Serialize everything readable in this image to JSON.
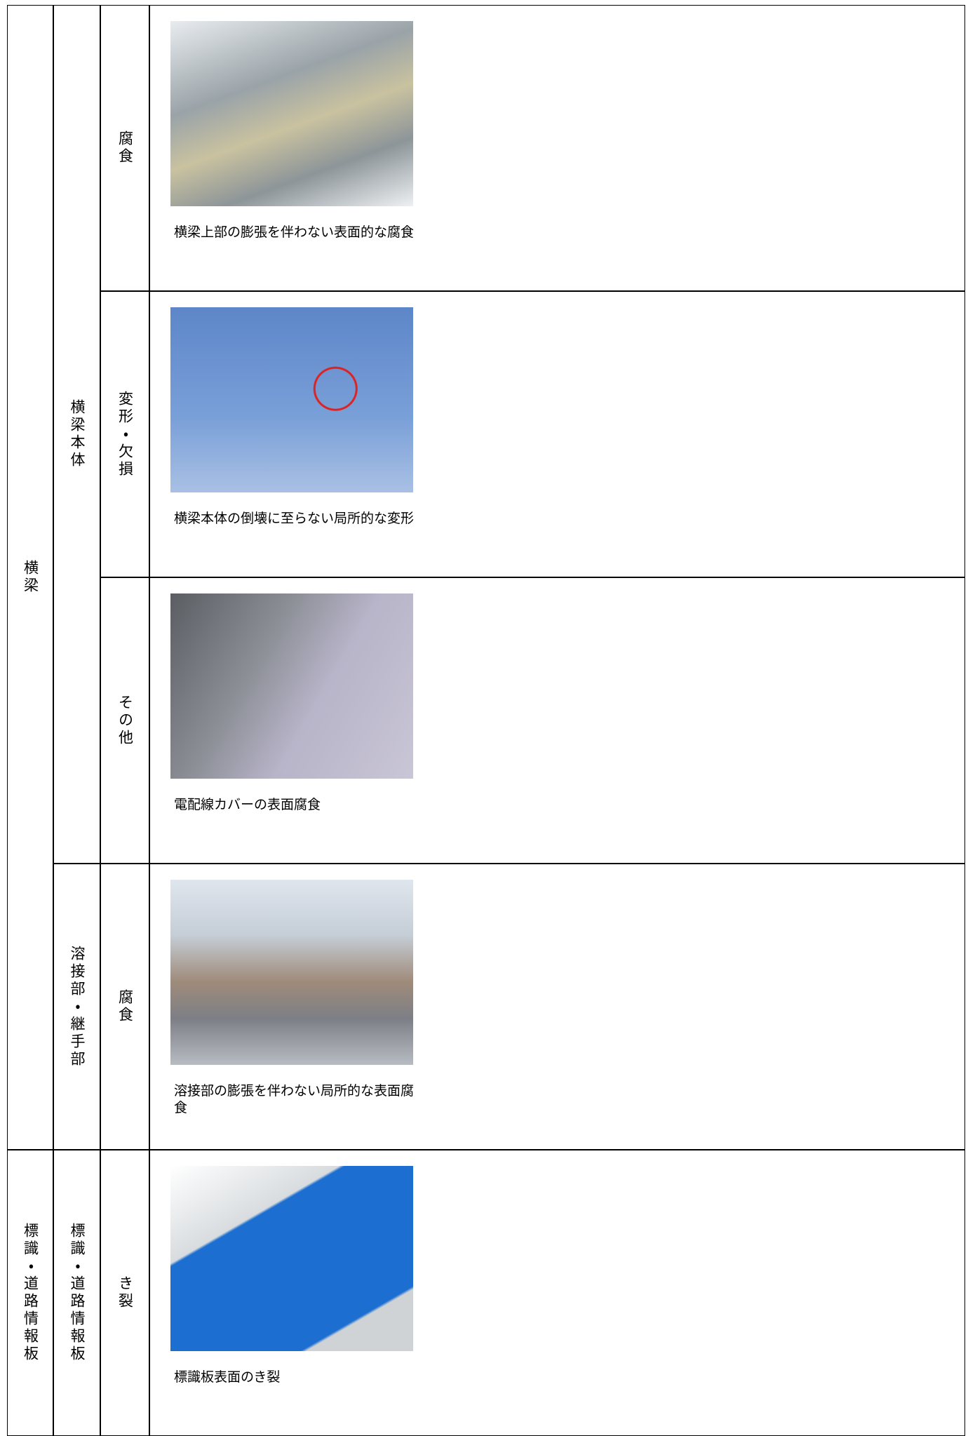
{
  "table": {
    "groups": [
      {
        "label": "横梁",
        "parts": [
          {
            "label": "横梁本体",
            "items": [
              {
                "damage": "腐食",
                "caption": "横梁上部の膨張を伴わない表面的な腐食"
              },
              {
                "damage": "変形・欠損",
                "caption": "横梁本体の倒壊に至らない局所的な変形"
              },
              {
                "damage": "その他",
                "caption": "電配線カバーの表面腐食"
              }
            ]
          },
          {
            "label": "溶接部・継手部",
            "items": [
              {
                "damage": "腐食",
                "caption": "溶接部の膨張を伴わない局所的な表面腐食"
              }
            ]
          }
        ]
      },
      {
        "label": "標識・道路情報板",
        "parts": [
          {
            "label": "標識・道路情報板",
            "items": [
              {
                "damage": "き裂",
                "caption": "標識板表面のき裂"
              }
            ]
          }
        ]
      }
    ]
  }
}
